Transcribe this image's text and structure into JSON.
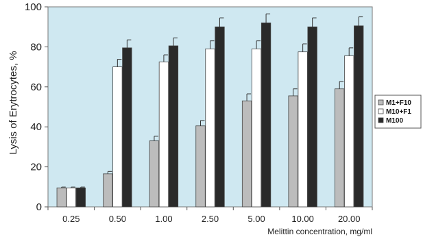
{
  "chart_data": {
    "type": "bar",
    "title": "",
    "xlabel": "Melittin concentration, mg/ml",
    "ylabel": "Lysis of Erytrocytes, %",
    "ylim": [
      0,
      100
    ],
    "yticks": [
      0,
      20,
      40,
      60,
      80,
      100
    ],
    "categories": [
      "0.25",
      "0.50",
      "1.00",
      "2.50",
      "5.00",
      "10.00",
      "20.00"
    ],
    "series": [
      {
        "name": "M1+F10",
        "color": "#bcbcbc",
        "values": [
          9.5,
          16.5,
          33,
          40.5,
          53,
          55.5,
          59
        ],
        "errors": [
          0.4,
          1.2,
          2.3,
          2.7,
          3.5,
          3.5,
          3.7
        ]
      },
      {
        "name": "M10+F1",
        "color": "#ffffff",
        "values": [
          9.5,
          70,
          72.5,
          79,
          79,
          77.5,
          75.5
        ],
        "errors": [
          0.4,
          3.8,
          3.5,
          4,
          4,
          4,
          4
        ]
      },
      {
        "name": "M100",
        "color": "#2a2a2a",
        "values": [
          9.5,
          79.5,
          80.5,
          90,
          92,
          90,
          90.5
        ],
        "errors": [
          0.4,
          4,
          4,
          4.5,
          4.5,
          4.5,
          4.5
        ]
      }
    ],
    "plot_background": "#cfe8f1",
    "legend_position": "right",
    "grid": false
  }
}
